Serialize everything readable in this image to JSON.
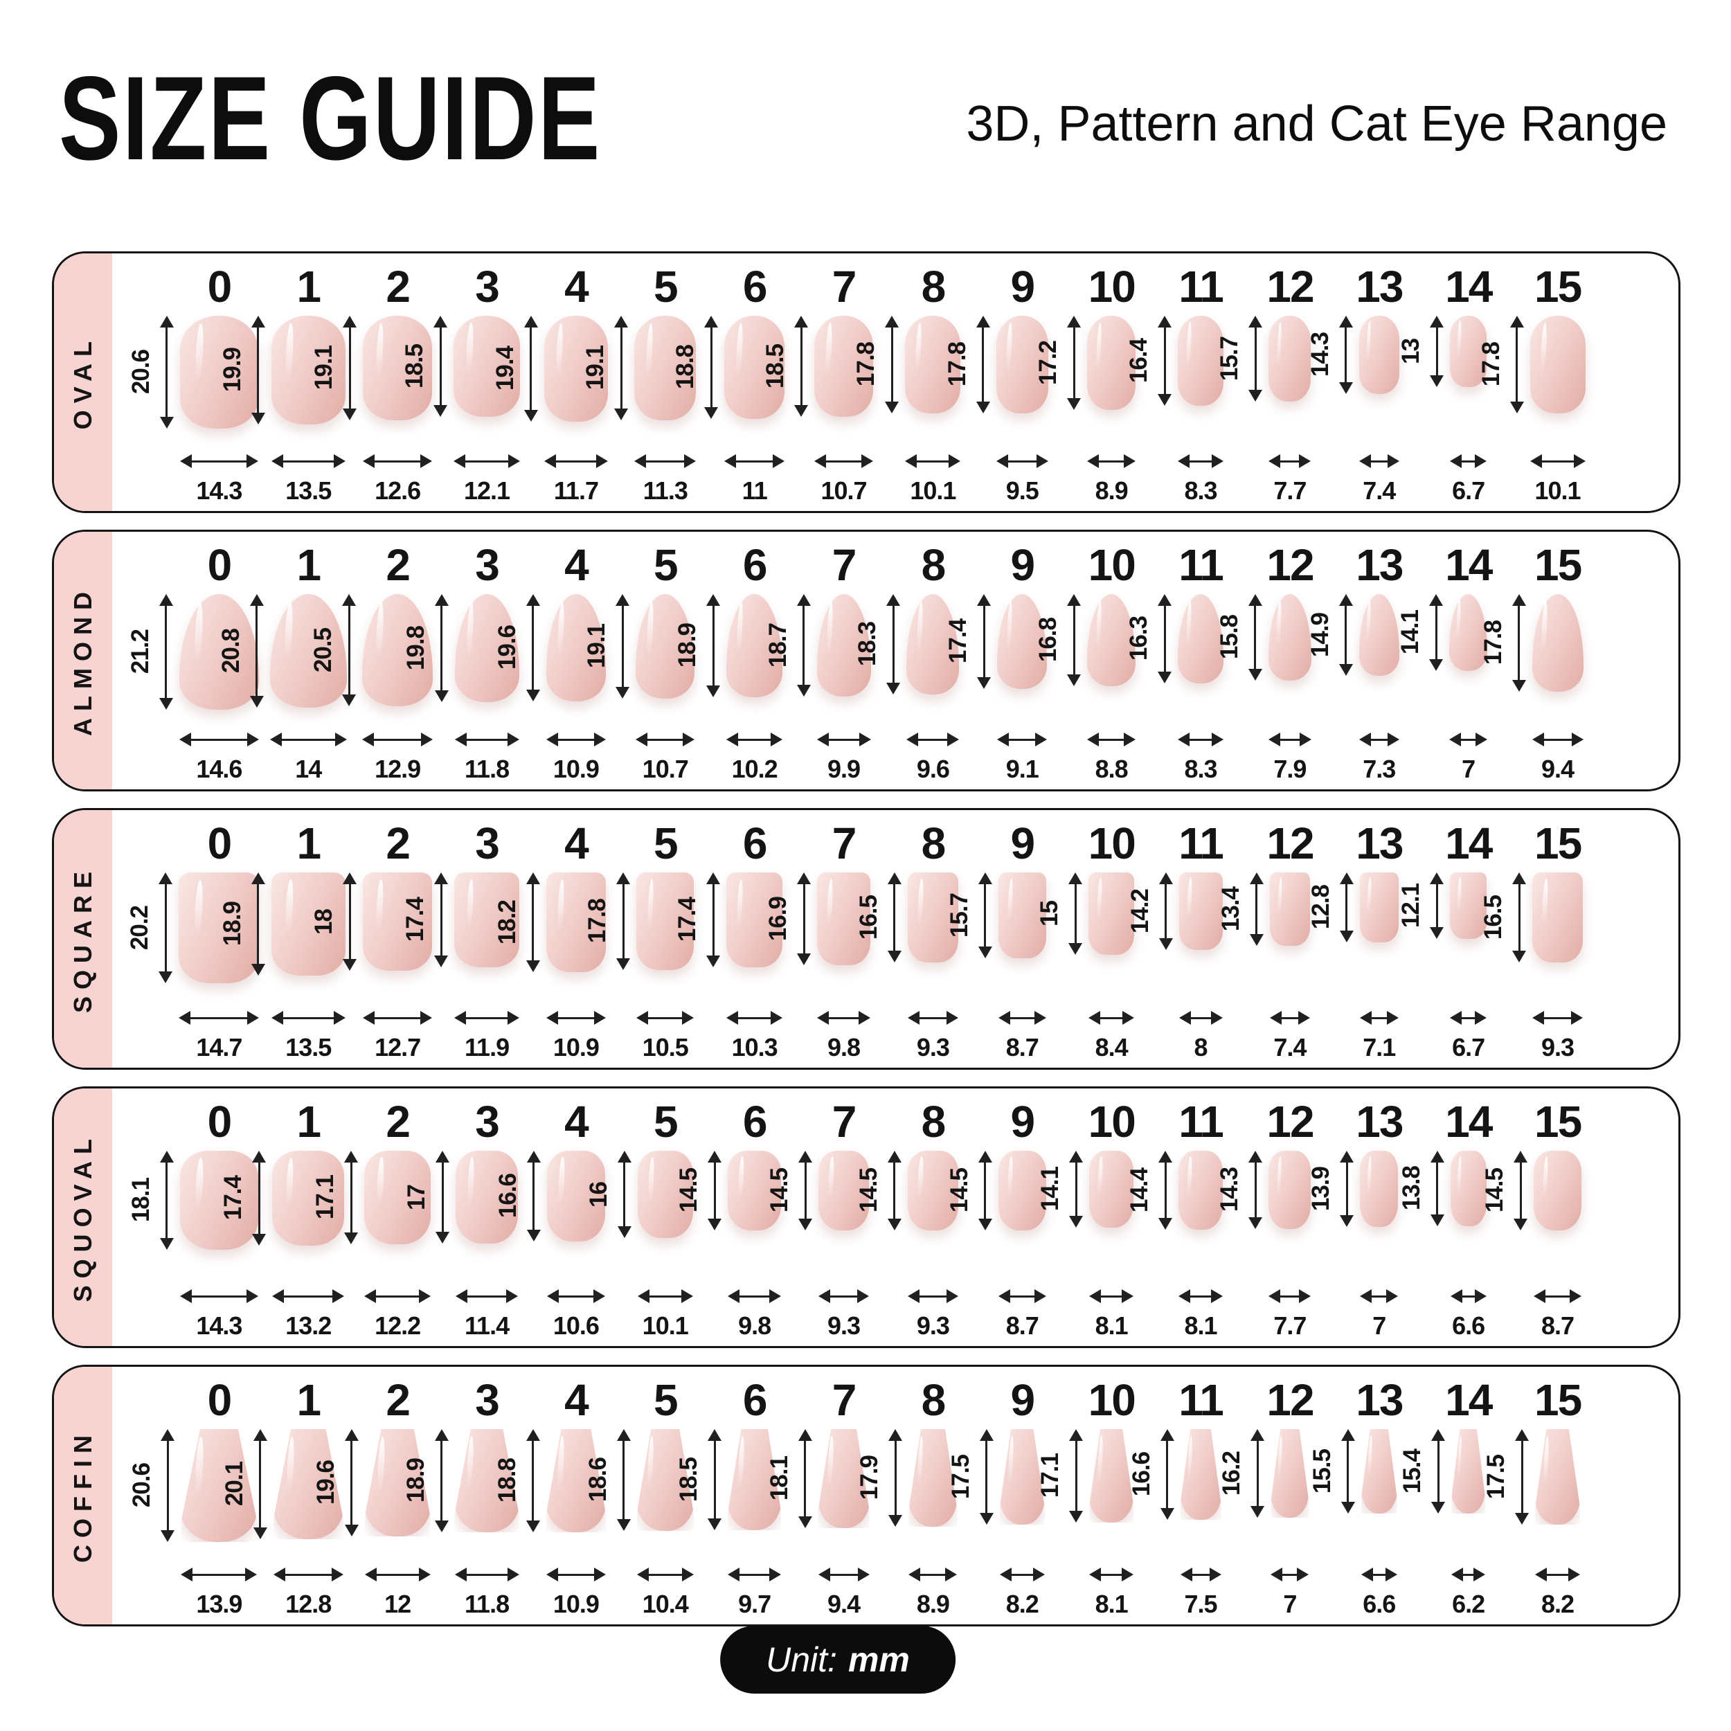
{
  "header": {
    "title": "SIZE GUIDE",
    "subtitle": "3D, Pattern and Cat Eye Range"
  },
  "footer": {
    "unit_prefix": "Unit:",
    "unit_value": "mm"
  },
  "colors": {
    "accent_pink": "#f7d3d2",
    "nail_light": "#f8e4e1",
    "nail_mid": "#f1cdc9",
    "nail_dark": "#e2aca5",
    "row_border": "#141414",
    "pill_bg": "#0c0c0c",
    "pill_text": "#ffffff"
  },
  "unit": "mm",
  "size_labels": [
    "0",
    "1",
    "2",
    "3",
    "4",
    "5",
    "6",
    "7",
    "8",
    "9",
    "10",
    "11",
    "12",
    "13",
    "14",
    "15"
  ],
  "rows": [
    {
      "label": "OVAL",
      "shape": "oval",
      "lengths_mm": [
        "20.6",
        "19.9",
        "19.1",
        "18.5",
        "19.4",
        "19.1",
        "18.8",
        "18.5",
        "17.8",
        "17.8",
        "17.2",
        "16.4",
        "15.7",
        "14.3",
        "13",
        "17.8"
      ],
      "widths_mm": [
        "14.3",
        "13.5",
        "12.6",
        "12.1",
        "11.7",
        "11.3",
        "11",
        "10.7",
        "10.1",
        "9.5",
        "8.9",
        "8.3",
        "7.7",
        "7.4",
        "6.7",
        "10.1"
      ]
    },
    {
      "label": "ALMOND",
      "shape": "almond",
      "lengths_mm": [
        "21.2",
        "20.8",
        "20.5",
        "19.8",
        "19.6",
        "19.1",
        "18.9",
        "18.7",
        "18.3",
        "17.4",
        "16.8",
        "16.3",
        "15.8",
        "14.9",
        "14.1",
        "17.8"
      ],
      "widths_mm": [
        "14.6",
        "14",
        "12.9",
        "11.8",
        "10.9",
        "10.7",
        "10.2",
        "9.9",
        "9.6",
        "9.1",
        "8.8",
        "8.3",
        "7.9",
        "7.3",
        "7",
        "9.4"
      ]
    },
    {
      "label": "SQUARE",
      "shape": "square",
      "lengths_mm": [
        "20.2",
        "18.9",
        "18",
        "17.4",
        "18.2",
        "17.8",
        "17.4",
        "16.9",
        "16.5",
        "15.7",
        "15",
        "14.2",
        "13.4",
        "12.8",
        "12.1",
        "16.5"
      ],
      "widths_mm": [
        "14.7",
        "13.5",
        "12.7",
        "11.9",
        "10.9",
        "10.5",
        "10.3",
        "9.8",
        "9.3",
        "8.7",
        "8.4",
        "8",
        "7.4",
        "7.1",
        "6.7",
        "9.3"
      ]
    },
    {
      "label": "SQUOVAL",
      "shape": "squoval",
      "lengths_mm": [
        "18.1",
        "17.4",
        "17.1",
        "17",
        "16.6",
        "16",
        "14.5",
        "14.5",
        "14.5",
        "14.5",
        "14.1",
        "14.4",
        "14.3",
        "13.9",
        "13.8",
        "14.5"
      ],
      "widths_mm": [
        "14.3",
        "13.2",
        "12.2",
        "11.4",
        "10.6",
        "10.1",
        "9.8",
        "9.3",
        "9.3",
        "8.7",
        "8.1",
        "8.1",
        "7.7",
        "7",
        "6.6",
        "8.7"
      ]
    },
    {
      "label": "COFFIN",
      "shape": "coffin",
      "lengths_mm": [
        "20.6",
        "20.1",
        "19.6",
        "18.9",
        "18.8",
        "18.6",
        "18.5",
        "18.1",
        "17.9",
        "17.5",
        "17.1",
        "16.6",
        "16.2",
        "15.5",
        "15.4",
        "17.5"
      ],
      "widths_mm": [
        "13.9",
        "12.8",
        "12",
        "11.8",
        "10.9",
        "10.4",
        "9.7",
        "9.4",
        "8.9",
        "8.2",
        "8.1",
        "7.5",
        "7",
        "6.6",
        "6.2",
        "8.2"
      ]
    }
  ]
}
